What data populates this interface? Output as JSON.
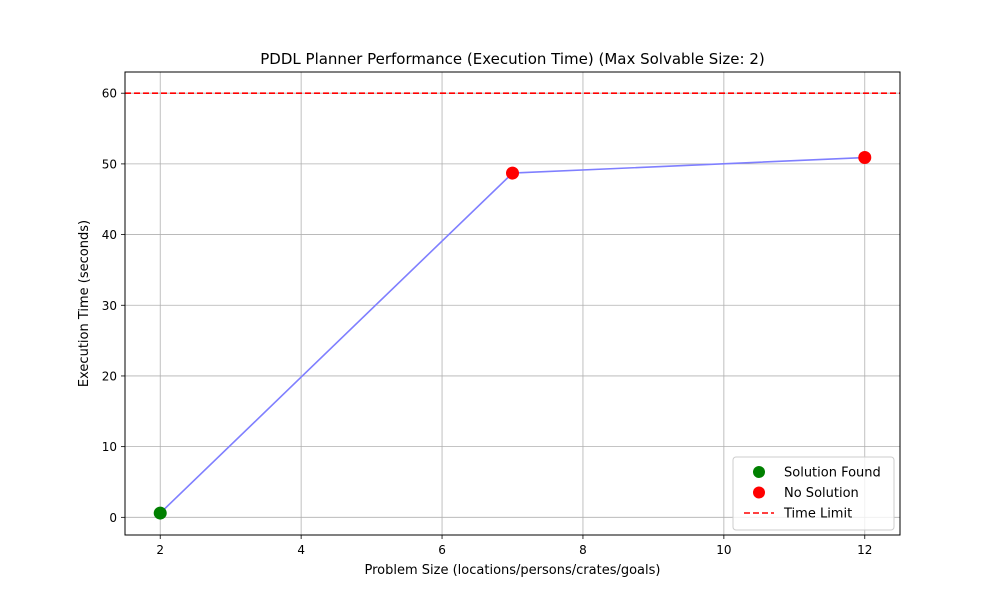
{
  "chart_data": {
    "type": "line",
    "title": "PDDL Planner Performance (Execution Time) (Max Solvable Size: 2)",
    "xlabel": "Problem Size (locations/persons/crates/goals)",
    "ylabel": "Execution Time (seconds)",
    "xlim": [
      1.5,
      12.5
    ],
    "ylim": [
      -2.5,
      63
    ],
    "xticks": [
      2,
      4,
      6,
      8,
      10,
      12
    ],
    "yticks": [
      0,
      10,
      20,
      30,
      40,
      50,
      60
    ],
    "grid": true,
    "legend_position": "lower-right",
    "series": [
      {
        "x": [
          2,
          7,
          12
        ],
        "y": [
          0.6,
          48.7,
          50.9
        ],
        "color": "#7f7fff",
        "status": [
          "Solution Found",
          "No Solution",
          "No Solution"
        ]
      }
    ],
    "time_limit": 60,
    "status_colors": {
      "Solution Found": "#008000",
      "No Solution": "#ff0000"
    },
    "time_limit_color": "#ff0000",
    "legend": [
      {
        "label": "Solution Found",
        "kind": "marker",
        "color": "#008000"
      },
      {
        "label": "No Solution",
        "kind": "marker",
        "color": "#ff0000"
      },
      {
        "label": "Time Limit",
        "kind": "dashed-line",
        "color": "#ff0000"
      }
    ]
  }
}
